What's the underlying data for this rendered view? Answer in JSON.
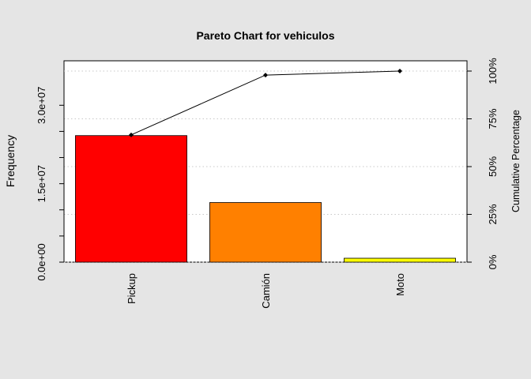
{
  "chart_data": {
    "type": "bar",
    "title": "Pareto Chart for vehiculos",
    "categories": [
      "Pickup",
      "Camión",
      "Moto"
    ],
    "values": [
      24200000,
      11400000,
      750000
    ],
    "bar_colors": [
      "#ff0000",
      "#ff8000",
      "#ffff00"
    ],
    "ylabel": "Frequency",
    "ylim": [
      0,
      38500000
    ],
    "yticks": [
      {
        "value": 0,
        "label": "0.0e+00"
      },
      {
        "value": 15000000,
        "label": "1.5e+07"
      },
      {
        "value": 30000000,
        "label": "3.0e+07"
      }
    ],
    "y2label": "Cumulative Percentage",
    "y2ticks": [
      {
        "value": 0,
        "label": "0%"
      },
      {
        "value": 25,
        "label": "25%"
      },
      {
        "value": 50,
        "label": "50%"
      },
      {
        "value": 75,
        "label": "75%"
      },
      {
        "value": 100,
        "label": "100%"
      }
    ],
    "cumulative_percentage": [
      66.6,
      97.9,
      100
    ],
    "grid": "horizontal dotted at cumulative percentage ticks"
  }
}
